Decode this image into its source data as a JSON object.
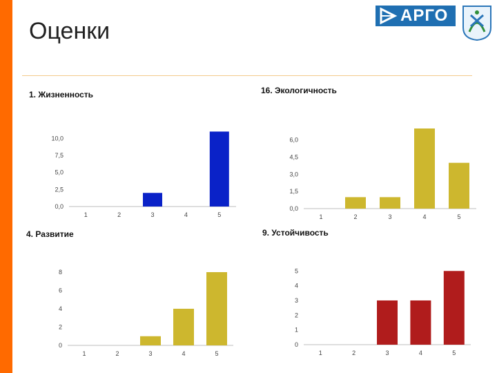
{
  "slide": {
    "title": "Оценки",
    "logo_text": "АРГО"
  },
  "colors": {
    "accent_bar": "#ff6a00",
    "logo_bg": "#1f6fb2"
  },
  "chart_data": [
    {
      "id": "c1",
      "type": "bar",
      "title": "1. Жизненность",
      "categories": [
        "1",
        "2",
        "3",
        "4",
        "5"
      ],
      "values": [
        0,
        0,
        2,
        0,
        11
      ],
      "ylim": [
        0,
        11.25
      ],
      "yticks": [
        "0,0",
        "2,5",
        "5,0",
        "7,5",
        "10,0"
      ],
      "ytick_values": [
        0,
        2.5,
        5,
        7.5,
        10
      ],
      "color": "#0a22c8"
    },
    {
      "id": "c2",
      "type": "bar",
      "title": "16. Экологичность",
      "categories": [
        "1",
        "2",
        "3",
        "4",
        "5"
      ],
      "values": [
        0,
        1,
        1,
        7,
        4
      ],
      "ylim": [
        0,
        7
      ],
      "yticks": [
        "0,0",
        "1,5",
        "3,0",
        "4,5",
        "6,0"
      ],
      "ytick_values": [
        0,
        1.5,
        3,
        4.5,
        6
      ],
      "color": "#cdb72e"
    },
    {
      "id": "c3",
      "type": "bar",
      "title": "4. Развитие",
      "categories": [
        "1",
        "2",
        "3",
        "4",
        "5"
      ],
      "values": [
        0,
        0,
        1,
        4,
        8
      ],
      "ylim": [
        0,
        8.3
      ],
      "yticks": [
        "0",
        "2",
        "4",
        "6",
        "8"
      ],
      "ytick_values": [
        0,
        2,
        4,
        6,
        8
      ],
      "color": "#cdb72e"
    },
    {
      "id": "c4",
      "type": "bar",
      "title": "9. Устойчивость",
      "categories": [
        "1",
        "2",
        "3",
        "4",
        "5"
      ],
      "values": [
        0,
        0,
        3,
        3,
        5
      ],
      "ylim": [
        0,
        5.2
      ],
      "yticks": [
        "0",
        "1",
        "2",
        "3",
        "4",
        "5"
      ],
      "ytick_values": [
        0,
        1,
        2,
        3,
        4,
        5
      ],
      "color": "#b01c1c"
    }
  ]
}
